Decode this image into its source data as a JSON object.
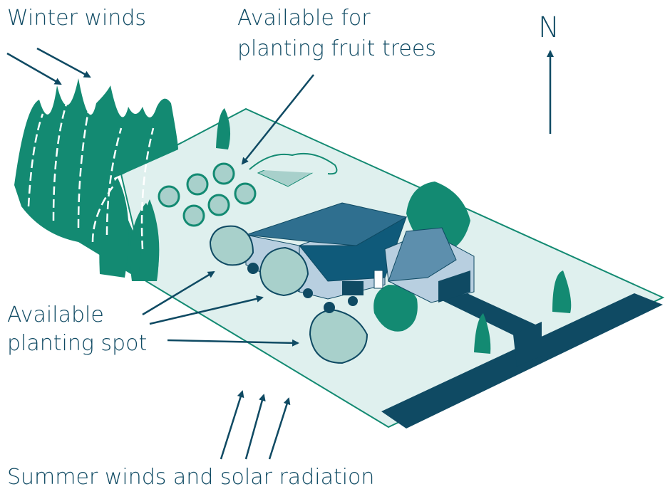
{
  "labels": {
    "winter_winds": "Winter winds",
    "fruit_trees": [
      "Available for",
      "planting fruit trees"
    ],
    "north": "N",
    "planting_spot": [
      "Available",
      "planting spot"
    ],
    "summer": "Summer winds and solar radiation"
  }
}
